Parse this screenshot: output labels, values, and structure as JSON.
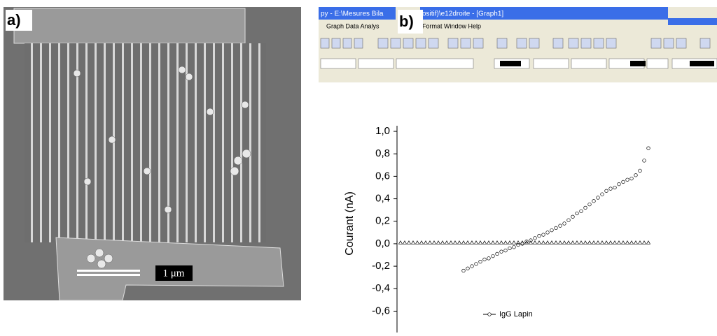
{
  "panels": {
    "a": "a)",
    "b": "b)"
  },
  "scale_bar": "1 μm",
  "screenshot": {
    "window_title_1": "py - E:\\Mesures Bila",
    "window_title_2": "ositif)\\e12droite - [Graph1]",
    "menu_1": "Graph  Data  Analys",
    "menu_2": "Format  Window  Help"
  },
  "chart_data": {
    "type": "scatter",
    "y_label": "Courant (nA)",
    "ylim": [
      -0.79,
      1.05
    ],
    "yticks": [
      {
        "value": 1.0,
        "label": "1,0"
      },
      {
        "value": 0.8,
        "label": "0,8"
      },
      {
        "value": 0.6,
        "label": "0,6"
      },
      {
        "value": 0.4,
        "label": "0,4"
      },
      {
        "value": 0.2,
        "label": "0,2"
      },
      {
        "value": 0.0,
        "label": "0,0"
      },
      {
        "value": -0.2,
        "label": "-0,2"
      },
      {
        "value": -0.4,
        "label": "-0,4"
      },
      {
        "value": -0.6,
        "label": "-0,6"
      }
    ],
    "series": [
      {
        "name": "IgG Lapin",
        "marker": "circle",
        "color": "#000000",
        "values": [
          null,
          null,
          null,
          null,
          null,
          null,
          null,
          null,
          null,
          null,
          null,
          null,
          null,
          null,
          null,
          -0.24,
          -0.22,
          -0.2,
          -0.18,
          -0.16,
          -0.14,
          -0.13,
          -0.11,
          -0.09,
          -0.07,
          -0.06,
          -0.04,
          -0.03,
          -0.01,
          0.0,
          0.02,
          0.03,
          0.05,
          0.07,
          0.08,
          0.1,
          0.12,
          0.14,
          0.16,
          0.18,
          0.21,
          0.24,
          0.27,
          0.29,
          0.32,
          0.35,
          0.38,
          0.41,
          0.44,
          0.47,
          0.49,
          0.5,
          0.53,
          0.55,
          0.57,
          0.58,
          0.61,
          0.65,
          0.74,
          0.85
        ]
      },
      {
        "marker": "triangle",
        "color": "#000000",
        "values": [
          0.01,
          0.01,
          0.01,
          0.01,
          0.01,
          0.01,
          0.01,
          0.01,
          0.01,
          0.01,
          0.01,
          0.01,
          0.01,
          0.01,
          0.01,
          0.01,
          0.01,
          0.01,
          0.01,
          0.01,
          0.01,
          0.01,
          0.01,
          0.01,
          0.01,
          0.01,
          0.01,
          0.01,
          0.01,
          0.01,
          0.01,
          0.01,
          0.01,
          0.01,
          0.01,
          0.01,
          0.01,
          0.01,
          0.01,
          0.01,
          0.01,
          0.01,
          0.01,
          0.01,
          0.01,
          0.01,
          0.01,
          0.01,
          0.01,
          0.01,
          0.01,
          0.01,
          0.01,
          0.01,
          0.01,
          0.01,
          0.01,
          0.01,
          0.01,
          0.01
        ]
      }
    ]
  }
}
